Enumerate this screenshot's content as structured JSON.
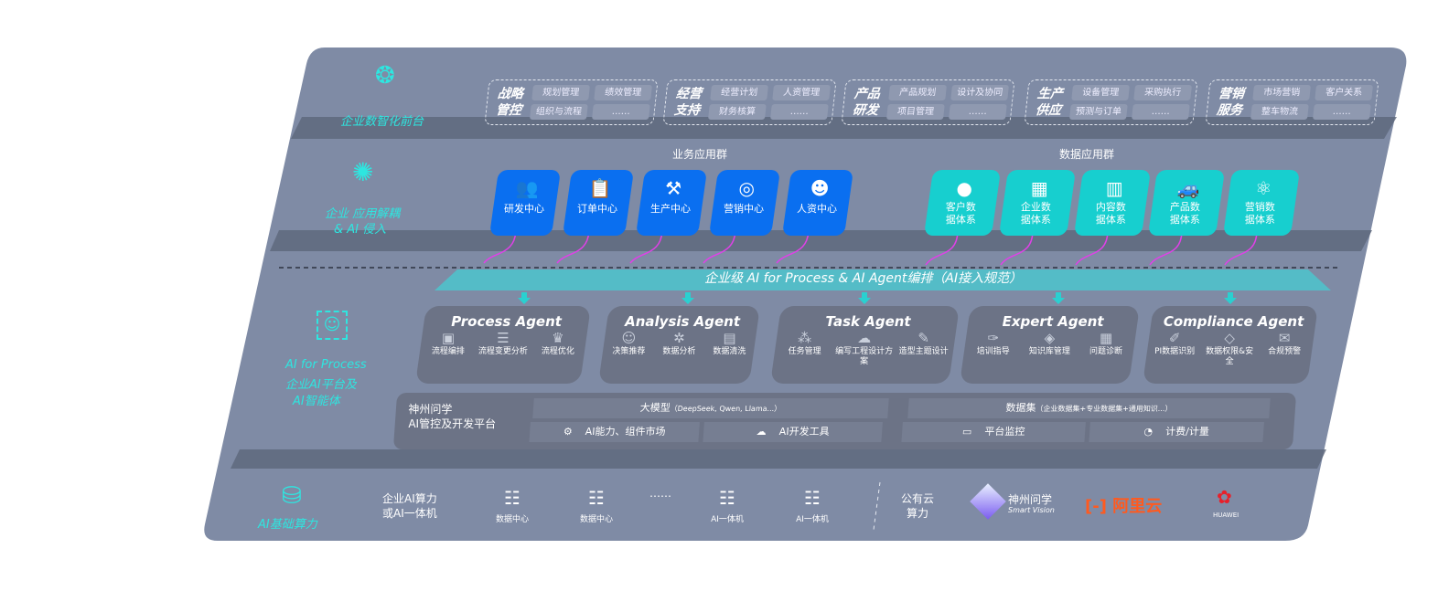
{
  "colors": {
    "board": "#7f8ba5",
    "panel": "#6c7386",
    "blue": "#0a6ff0",
    "teal": "#17cfcf",
    "accent": "#2ee6e0",
    "arrow": "#e040e8"
  },
  "layers": {
    "front": {
      "label": "企业数智化前台",
      "icon": "brain-icon"
    },
    "apps": {
      "label1": "企业 应用解耦",
      "label2": "& AI 侵入",
      "icon": "molecule-icon"
    },
    "ai": {
      "label1": "AI for Process",
      "label2": "企业AI平台及",
      "label3": "AI智能体",
      "icon": "face-scan-icon"
    },
    "infra": {
      "label": "AI基础算力",
      "icon": "database-icon"
    }
  },
  "front_groups": [
    {
      "title": "战略管控",
      "items": [
        "规划管理",
        "绩效管理",
        "组织与流程",
        "……"
      ]
    },
    {
      "title": "经营支持",
      "items": [
        "经营计划",
        "人资管理",
        "财务核算",
        "……"
      ]
    },
    {
      "title": "产品研发",
      "items": [
        "产品规划",
        "设计及协同",
        "项目管理",
        "……"
      ]
    },
    {
      "title": "生产供应",
      "items": [
        "设备管理",
        "采购执行",
        "预测与订单",
        "……"
      ]
    },
    {
      "title": "营销服务",
      "items": [
        "市场营销",
        "客户关系",
        "整车物流",
        "……"
      ]
    }
  ],
  "biz_apps": {
    "title": "业务应用群",
    "items": [
      {
        "label": "研发中心",
        "icon": "users-icon"
      },
      {
        "label": "订单中心",
        "icon": "clipboard-icon"
      },
      {
        "label": "生产中心",
        "icon": "factory-icon"
      },
      {
        "label": "营销中心",
        "icon": "target-icon"
      },
      {
        "label": "人资中心",
        "icon": "person-icon"
      }
    ]
  },
  "data_apps": {
    "title": "数据应用群",
    "items": [
      {
        "label": "客户数据体系",
        "icon": "user-icon"
      },
      {
        "label": "企业数据体系",
        "icon": "building-icon"
      },
      {
        "label": "内容数据体系",
        "icon": "books-icon"
      },
      {
        "label": "产品数据体系",
        "icon": "car-icon"
      },
      {
        "label": "营销数据体系",
        "icon": "atom-icon"
      }
    ]
  },
  "band": "企业级 AI for Process & AI Agent编排（AI接入规范）",
  "agents": [
    {
      "name": "Process Agent",
      "features": [
        "流程编排",
        "流程变更分析",
        "流程优化"
      ]
    },
    {
      "name": "Analysis Agent",
      "features": [
        "决策推荐",
        "数据分析",
        "数据清洗"
      ]
    },
    {
      "name": "Task Agent",
      "features": [
        "任务管理",
        "编写工程设计方案",
        "造型主题设计"
      ]
    },
    {
      "name": "Expert Agent",
      "features": [
        "培训指导",
        "知识库管理",
        "问题诊断"
      ]
    },
    {
      "name": "Compliance Agent",
      "features": [
        "PI数据识别",
        "数据权限&安全",
        "合规预警"
      ]
    }
  ],
  "platform": {
    "title1": "神州问学",
    "title2": "AI管控及开发平台",
    "model": "大模型",
    "model_note": "（DeepSeek, Qwen, Llama...）",
    "dataset": "数据集",
    "dataset_note": "（企业数据集+专业数据集+通用知识...）",
    "market": "AI能力、组件市场",
    "devtools": "AI开发工具",
    "monitor": "平台监控",
    "billing": "计费/计量"
  },
  "infra": {
    "enterprise1": "企业AI算力",
    "enterprise2": "或AI一体机",
    "servers": [
      "数据中心",
      "数据中心",
      "AI一体机",
      "AI一体机"
    ],
    "ellipsis": "……",
    "public1": "公有云",
    "public2": "算力",
    "vendors": {
      "sv_cn": "神州问学",
      "sv_en": "Smart Vision",
      "aliyun": "阿里云",
      "huawei": "HUAWEI"
    }
  }
}
